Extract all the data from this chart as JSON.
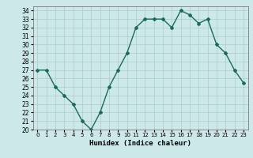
{
  "x": [
    0,
    1,
    2,
    3,
    4,
    5,
    6,
    7,
    8,
    9,
    10,
    11,
    12,
    13,
    14,
    15,
    16,
    17,
    18,
    19,
    20,
    21,
    22,
    23
  ],
  "y": [
    27,
    27,
    25,
    24,
    23,
    21,
    20,
    22,
    25,
    27,
    29,
    32,
    33,
    33,
    33,
    32,
    34,
    33.5,
    32.5,
    33,
    30,
    29,
    27,
    25.5
  ],
  "line_color": "#1a6b5a",
  "marker": "D",
  "marker_size": 2.0,
  "xlabel": "Humidex (Indice chaleur)",
  "ylim": [
    20,
    34.5
  ],
  "xlim": [
    -0.5,
    23.5
  ],
  "yticks": [
    20,
    21,
    22,
    23,
    24,
    25,
    26,
    27,
    28,
    29,
    30,
    31,
    32,
    33,
    34
  ],
  "xticks": [
    0,
    1,
    2,
    3,
    4,
    5,
    6,
    7,
    8,
    9,
    10,
    11,
    12,
    13,
    14,
    15,
    16,
    17,
    18,
    19,
    20,
    21,
    22,
    23
  ],
  "bg_color": "#cce8e8",
  "grid_color": "#aacccc",
  "line_width": 1.0
}
